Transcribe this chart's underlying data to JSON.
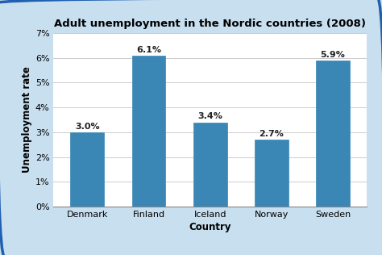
{
  "title": "Adult unemployment in the Nordic countries (2008)",
  "xlabel": "Country",
  "ylabel": "Unemployment rate",
  "categories": [
    "Denmark",
    "Finland",
    "Iceland",
    "Norway",
    "Sweden"
  ],
  "values": [
    3.0,
    6.1,
    3.4,
    2.7,
    5.9
  ],
  "labels": [
    "3.0%",
    "6.1%",
    "3.4%",
    "2.7%",
    "5.9%"
  ],
  "bar_color": "#3a86b4",
  "ylim": [
    0,
    7
  ],
  "yticks": [
    0,
    1,
    2,
    3,
    4,
    5,
    6,
    7
  ],
  "ytick_labels": [
    "0%",
    "1%",
    "2%",
    "3%",
    "4%",
    "5%",
    "6%",
    "7%"
  ],
  "fig_bg_color": "#c8dff0",
  "plot_bg_color": "#ffffff",
  "border_color": "#2060b0",
  "title_fontsize": 9.5,
  "label_fontsize": 8,
  "axis_label_fontsize": 8.5,
  "tick_fontsize": 8
}
